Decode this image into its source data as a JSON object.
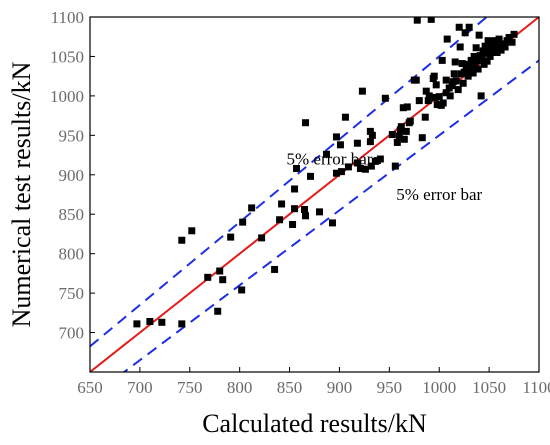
{
  "chart_data": {
    "type": "scatter",
    "title": "",
    "xlabel": "Calculated results/kN",
    "ylabel": "Numerical test results/kN",
    "xlim": [
      650,
      1100
    ],
    "ylim": [
      650,
      1100
    ],
    "x_ticks": [
      650,
      700,
      750,
      800,
      850,
      900,
      950,
      1000,
      1050,
      1100
    ],
    "y_ticks": [
      700,
      750,
      800,
      850,
      900,
      950,
      1000,
      1050,
      1100
    ],
    "grid": false,
    "legend": "none",
    "annotations": [
      {
        "text": "5% error bar",
        "x": 890,
        "y": 913
      },
      {
        "text": "5% error bar",
        "x": 1000,
        "y": 868
      }
    ],
    "reference_lines": [
      {
        "name": "y = x",
        "slope": 1.0,
        "color": "#e51a1a",
        "style": "solid"
      },
      {
        "name": "+5%",
        "slope": 1.05,
        "color": "#1c2ee6",
        "style": "dashed"
      },
      {
        "name": "-5%",
        "slope": 0.95,
        "color": "#1c2ee6",
        "style": "dashed"
      }
    ],
    "series": [
      {
        "marker": "square",
        "color": "#000000",
        "points": [
          [
            697,
            711
          ],
          [
            710,
            714
          ],
          [
            722,
            713
          ],
          [
            742,
            711
          ],
          [
            742,
            817
          ],
          [
            752,
            829
          ],
          [
            768,
            770
          ],
          [
            778,
            727
          ],
          [
            780,
            778
          ],
          [
            783,
            767
          ],
          [
            791,
            821
          ],
          [
            802,
            754
          ],
          [
            803,
            840
          ],
          [
            812,
            858
          ],
          [
            822,
            820
          ],
          [
            835,
            780
          ],
          [
            840,
            843
          ],
          [
            842,
            863
          ],
          [
            853,
            837
          ],
          [
            855,
            857
          ],
          [
            855,
            882
          ],
          [
            857,
            908
          ],
          [
            865,
            856
          ],
          [
            866,
            848
          ],
          [
            866,
            966
          ],
          [
            871,
            898
          ],
          [
            880,
            853
          ],
          [
            887,
            926
          ],
          [
            893,
            839
          ],
          [
            897,
            902
          ],
          [
            897,
            948
          ],
          [
            901,
            938
          ],
          [
            902,
            904
          ],
          [
            906,
            973
          ],
          [
            909,
            910
          ],
          [
            918,
            915
          ],
          [
            918,
            940
          ],
          [
            921,
            908
          ],
          [
            923,
            1006
          ],
          [
            926,
            907
          ],
          [
            931,
            942
          ],
          [
            931,
            955
          ],
          [
            932,
            911
          ],
          [
            933,
            950
          ],
          [
            936,
            917
          ],
          [
            938,
            918
          ],
          [
            941,
            920
          ],
          [
            946,
            997
          ],
          [
            953,
            951
          ],
          [
            956,
            911
          ],
          [
            958,
            941
          ],
          [
            960,
            949
          ],
          [
            961,
            957
          ],
          [
            962,
            961
          ],
          [
            964,
            985
          ],
          [
            965,
            945
          ],
          [
            967,
            955
          ],
          [
            968,
            986
          ],
          [
            970,
            966
          ],
          [
            971,
            968
          ],
          [
            975,
            1020
          ],
          [
            977,
            1020
          ],
          [
            978,
            1096
          ],
          [
            980,
            994
          ],
          [
            983,
            947
          ],
          [
            986,
            973
          ],
          [
            987,
            1006
          ],
          [
            989,
            994
          ],
          [
            990,
            1000
          ],
          [
            992,
            1097
          ],
          [
            994,
            1022
          ],
          [
            995,
            1025
          ],
          [
            996,
            998
          ],
          [
            997,
            1014
          ],
          [
            998,
            989
          ],
          [
            1000,
            999
          ],
          [
            1002,
            988
          ],
          [
            1003,
            1045
          ],
          [
            1004,
            991
          ],
          [
            1007,
            1020
          ],
          [
            1007,
            1004
          ],
          [
            1008,
            1072
          ],
          [
            1010,
            1010
          ],
          [
            1011,
            1000
          ],
          [
            1013,
            1013
          ],
          [
            1014,
            1018
          ],
          [
            1015,
            1028
          ],
          [
            1016,
            1043
          ],
          [
            1017,
            1019
          ],
          [
            1019,
            1008
          ],
          [
            1020,
            1087
          ],
          [
            1021,
            1062
          ],
          [
            1022,
            1028
          ],
          [
            1023,
            1041
          ],
          [
            1024,
            1016
          ],
          [
            1025,
            1030
          ],
          [
            1026,
            1080
          ],
          [
            1027,
            1033
          ],
          [
            1028,
            1040
          ],
          [
            1029,
            1025
          ],
          [
            1030,
            1087
          ],
          [
            1030,
            1035
          ],
          [
            1032,
            1045
          ],
          [
            1033,
            1037
          ],
          [
            1034,
            1029
          ],
          [
            1035,
            1050
          ],
          [
            1036,
            1042
          ],
          [
            1037,
            1061
          ],
          [
            1038,
            1045
          ],
          [
            1039,
            1034
          ],
          [
            1040,
            1077
          ],
          [
            1041,
            1051
          ],
          [
            1042,
            1000
          ],
          [
            1043,
            1048
          ],
          [
            1044,
            1057
          ],
          [
            1045,
            1040
          ],
          [
            1046,
            1063
          ],
          [
            1047,
            1054
          ],
          [
            1048,
            1044
          ],
          [
            1049,
            1070
          ],
          [
            1050,
            1060
          ],
          [
            1051,
            1050
          ],
          [
            1052,
            1065
          ],
          [
            1053,
            1056
          ],
          [
            1054,
            1060
          ],
          [
            1055,
            1068
          ],
          [
            1056,
            1070
          ],
          [
            1057,
            1061
          ],
          [
            1058,
            1055
          ],
          [
            1060,
            1072
          ],
          [
            1061,
            1064
          ],
          [
            1062,
            1058
          ],
          [
            1064,
            1066
          ],
          [
            1066,
            1062
          ],
          [
            1068,
            1070
          ],
          [
            1070,
            1074
          ],
          [
            1073,
            1068
          ],
          [
            1075,
            1078
          ]
        ]
      }
    ]
  }
}
